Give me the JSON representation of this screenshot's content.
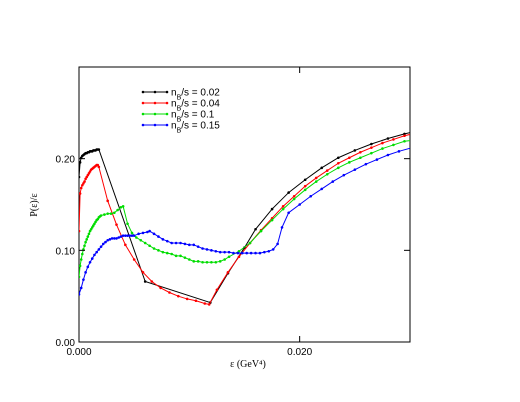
{
  "chart_data": {
    "type": "line",
    "xlabel": "ε (GeV⁴)",
    "ylabel": "P(ε)/ε",
    "xlim": [
      0,
      0.03
    ],
    "ylim": [
      0,
      0.3
    ],
    "x_ticks": [
      {
        "value": 0,
        "label": "0.000"
      },
      {
        "value": 0.02,
        "label": "0.020"
      }
    ],
    "y_ticks": [
      {
        "value": 0,
        "label": "0.00"
      },
      {
        "value": 0.1,
        "label": "0.10"
      },
      {
        "value": 0.2,
        "label": "0.20"
      }
    ],
    "grid": false,
    "legend_position": "top-left",
    "series": [
      {
        "name": "n_B/s = 0.02",
        "color": "#000000",
        "points": [
          [
            0.0,
            0.18
          ],
          [
            0.0001,
            0.196
          ],
          [
            0.0002,
            0.201
          ],
          [
            0.0003,
            0.203
          ],
          [
            0.0004,
            0.204
          ],
          [
            0.0005,
            0.205
          ],
          [
            0.0006,
            0.206
          ],
          [
            0.0007,
            0.206
          ],
          [
            0.0008,
            0.207
          ],
          [
            0.0009,
            0.207
          ],
          [
            0.001,
            0.208
          ],
          [
            0.0011,
            0.208
          ],
          [
            0.0012,
            0.208
          ],
          [
            0.0013,
            0.209
          ],
          [
            0.0014,
            0.209
          ],
          [
            0.0015,
            0.209
          ],
          [
            0.0016,
            0.21
          ],
          [
            0.0017,
            0.21
          ],
          [
            0.0018,
            0.21
          ],
          [
            0.006,
            0.066
          ],
          [
            0.0119,
            0.043
          ],
          [
            0.0135,
            0.075
          ],
          [
            0.015,
            0.103
          ],
          [
            0.016,
            0.123
          ],
          [
            0.0175,
            0.145
          ],
          [
            0.019,
            0.163
          ],
          [
            0.0205,
            0.177
          ],
          [
            0.022,
            0.19
          ],
          [
            0.0235,
            0.201
          ],
          [
            0.025,
            0.209
          ],
          [
            0.0265,
            0.216
          ],
          [
            0.028,
            0.222
          ],
          [
            0.0295,
            0.227
          ],
          [
            0.0302,
            0.229
          ]
        ]
      },
      {
        "name": "n_B/s = 0.04",
        "color": "#ff0000",
        "points": [
          [
            0.0,
            0.121
          ],
          [
            0.0001,
            0.162
          ],
          [
            0.0002,
            0.168
          ],
          [
            0.0003,
            0.171
          ],
          [
            0.0004,
            0.173
          ],
          [
            0.0005,
            0.175
          ],
          [
            0.0006,
            0.178
          ],
          [
            0.0007,
            0.18
          ],
          [
            0.0008,
            0.182
          ],
          [
            0.0009,
            0.184
          ],
          [
            0.001,
            0.186
          ],
          [
            0.0011,
            0.188
          ],
          [
            0.0012,
            0.189
          ],
          [
            0.0013,
            0.19
          ],
          [
            0.0014,
            0.191
          ],
          [
            0.0015,
            0.192
          ],
          [
            0.0016,
            0.193
          ],
          [
            0.0017,
            0.193
          ],
          [
            0.0018,
            0.191
          ],
          [
            0.0026,
            0.154
          ],
          [
            0.0034,
            0.128
          ],
          [
            0.0042,
            0.106
          ],
          [
            0.005,
            0.09
          ],
          [
            0.0058,
            0.076
          ],
          [
            0.0066,
            0.066
          ],
          [
            0.0074,
            0.059
          ],
          [
            0.0082,
            0.054
          ],
          [
            0.009,
            0.05
          ],
          [
            0.0098,
            0.047
          ],
          [
            0.0106,
            0.045
          ],
          [
            0.0114,
            0.042
          ],
          [
            0.0118,
            0.041
          ],
          [
            0.0125,
            0.057
          ],
          [
            0.0135,
            0.076
          ],
          [
            0.0145,
            0.093
          ],
          [
            0.0155,
            0.108
          ],
          [
            0.0165,
            0.122
          ],
          [
            0.0175,
            0.135
          ],
          [
            0.0185,
            0.148
          ],
          [
            0.0195,
            0.159
          ],
          [
            0.0205,
            0.17
          ],
          [
            0.0215,
            0.179
          ],
          [
            0.0225,
            0.187
          ],
          [
            0.0235,
            0.195
          ],
          [
            0.0245,
            0.201
          ],
          [
            0.0255,
            0.207
          ],
          [
            0.0265,
            0.212
          ],
          [
            0.0275,
            0.217
          ],
          [
            0.0285,
            0.221
          ],
          [
            0.0295,
            0.225
          ],
          [
            0.0302,
            0.227
          ]
        ]
      },
      {
        "name": "n_B/s = 0.1",
        "color": "#00dd00",
        "points": [
          [
            0.0,
            0.071
          ],
          [
            0.0001,
            0.083
          ],
          [
            0.0002,
            0.09
          ],
          [
            0.0003,
            0.096
          ],
          [
            0.0004,
            0.101
          ],
          [
            0.0005,
            0.105
          ],
          [
            0.0006,
            0.109
          ],
          [
            0.0007,
            0.112
          ],
          [
            0.0008,
            0.115
          ],
          [
            0.0009,
            0.118
          ],
          [
            0.001,
            0.121
          ],
          [
            0.0011,
            0.123
          ],
          [
            0.0012,
            0.125
          ],
          [
            0.0013,
            0.127
          ],
          [
            0.0014,
            0.129
          ],
          [
            0.0015,
            0.131
          ],
          [
            0.0016,
            0.133
          ],
          [
            0.0017,
            0.134
          ],
          [
            0.0018,
            0.136
          ],
          [
            0.0019,
            0.137
          ],
          [
            0.002,
            0.138
          ],
          [
            0.0023,
            0.139
          ],
          [
            0.0026,
            0.14
          ],
          [
            0.0029,
            0.14
          ],
          [
            0.0032,
            0.141
          ],
          [
            0.0035,
            0.144
          ],
          [
            0.0038,
            0.147
          ],
          [
            0.004,
            0.148
          ],
          [
            0.0044,
            0.129
          ],
          [
            0.0048,
            0.119
          ],
          [
            0.0052,
            0.114
          ],
          [
            0.0056,
            0.111
          ],
          [
            0.006,
            0.108
          ],
          [
            0.0064,
            0.105
          ],
          [
            0.0068,
            0.102
          ],
          [
            0.0072,
            0.1
          ],
          [
            0.0076,
            0.098
          ],
          [
            0.008,
            0.097
          ],
          [
            0.0084,
            0.096
          ],
          [
            0.0088,
            0.094
          ],
          [
            0.0092,
            0.094
          ],
          [
            0.0096,
            0.092
          ],
          [
            0.01,
            0.09
          ],
          [
            0.0104,
            0.088
          ],
          [
            0.0108,
            0.088
          ],
          [
            0.0112,
            0.087
          ],
          [
            0.0116,
            0.087
          ],
          [
            0.012,
            0.087
          ],
          [
            0.0124,
            0.087
          ],
          [
            0.0128,
            0.088
          ],
          [
            0.0132,
            0.09
          ],
          [
            0.0136,
            0.093
          ],
          [
            0.0145,
            0.099
          ],
          [
            0.0155,
            0.108
          ],
          [
            0.0165,
            0.121
          ],
          [
            0.0175,
            0.133
          ],
          [
            0.0185,
            0.145
          ],
          [
            0.0195,
            0.156
          ],
          [
            0.0205,
            0.166
          ],
          [
            0.0215,
            0.175
          ],
          [
            0.0225,
            0.183
          ],
          [
            0.0235,
            0.19
          ],
          [
            0.0245,
            0.196
          ],
          [
            0.0255,
            0.201
          ],
          [
            0.0265,
            0.206
          ],
          [
            0.0275,
            0.211
          ],
          [
            0.0285,
            0.215
          ],
          [
            0.0295,
            0.219
          ],
          [
            0.0302,
            0.22
          ]
        ]
      },
      {
        "name": "n_B/s = 0.15",
        "color": "#0000ff",
        "points": [
          [
            0.0,
            0.052
          ],
          [
            0.0002,
            0.059
          ],
          [
            0.0004,
            0.068
          ],
          [
            0.0006,
            0.076
          ],
          [
            0.0008,
            0.082
          ],
          [
            0.001,
            0.087
          ],
          [
            0.0012,
            0.091
          ],
          [
            0.0014,
            0.095
          ],
          [
            0.0016,
            0.098
          ],
          [
            0.0018,
            0.101
          ],
          [
            0.002,
            0.104
          ],
          [
            0.0022,
            0.107
          ],
          [
            0.0024,
            0.109
          ],
          [
            0.0026,
            0.111
          ],
          [
            0.0028,
            0.112
          ],
          [
            0.003,
            0.113
          ],
          [
            0.0032,
            0.113
          ],
          [
            0.0034,
            0.113
          ],
          [
            0.0036,
            0.114
          ],
          [
            0.0038,
            0.115
          ],
          [
            0.004,
            0.116
          ],
          [
            0.0042,
            0.116
          ],
          [
            0.0044,
            0.116
          ],
          [
            0.0046,
            0.116
          ],
          [
            0.0048,
            0.116
          ],
          [
            0.005,
            0.116
          ],
          [
            0.0054,
            0.118
          ],
          [
            0.0058,
            0.119
          ],
          [
            0.0062,
            0.12
          ],
          [
            0.0064,
            0.121
          ],
          [
            0.0068,
            0.118
          ],
          [
            0.0072,
            0.115
          ],
          [
            0.0076,
            0.112
          ],
          [
            0.008,
            0.11
          ],
          [
            0.0084,
            0.108
          ],
          [
            0.0088,
            0.108
          ],
          [
            0.0092,
            0.108
          ],
          [
            0.0096,
            0.107
          ],
          [
            0.01,
            0.106
          ],
          [
            0.0104,
            0.106
          ],
          [
            0.0108,
            0.104
          ],
          [
            0.0112,
            0.102
          ],
          [
            0.0116,
            0.101
          ],
          [
            0.012,
            0.1
          ],
          [
            0.0124,
            0.099
          ],
          [
            0.0128,
            0.098
          ],
          [
            0.0132,
            0.098
          ],
          [
            0.0136,
            0.098
          ],
          [
            0.014,
            0.097
          ],
          [
            0.0144,
            0.097
          ],
          [
            0.0148,
            0.097
          ],
          [
            0.0152,
            0.097
          ],
          [
            0.0156,
            0.097
          ],
          [
            0.016,
            0.097
          ],
          [
            0.0164,
            0.097
          ],
          [
            0.0168,
            0.098
          ],
          [
            0.0172,
            0.099
          ],
          [
            0.0176,
            0.101
          ],
          [
            0.018,
            0.107
          ],
          [
            0.0184,
            0.125
          ],
          [
            0.019,
            0.141
          ],
          [
            0.02,
            0.15
          ],
          [
            0.021,
            0.159
          ],
          [
            0.022,
            0.167
          ],
          [
            0.023,
            0.175
          ],
          [
            0.024,
            0.182
          ],
          [
            0.025,
            0.188
          ],
          [
            0.026,
            0.194
          ],
          [
            0.027,
            0.199
          ],
          [
            0.028,
            0.204
          ],
          [
            0.029,
            0.208
          ],
          [
            0.0302,
            0.212
          ]
        ]
      }
    ]
  }
}
